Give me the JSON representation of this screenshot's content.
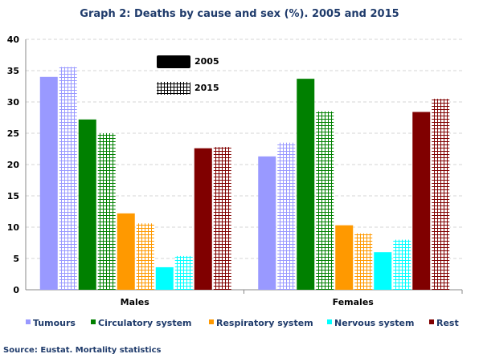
{
  "chart_data": {
    "type": "bar",
    "title": "Graph 2: Deaths by cause and sex (%). 2005 and 2015",
    "xlabel": "",
    "ylabel": "",
    "ylim": [
      0,
      40
    ],
    "yticks": [
      0,
      5,
      10,
      15,
      20,
      25,
      30,
      35,
      40
    ],
    "grid": true,
    "categories": [
      "Males",
      "Females"
    ],
    "years": [
      "2005",
      "2015"
    ],
    "series": [
      {
        "name": "Tumours",
        "color": "#9999ff",
        "values": {
          "2005": [
            34.0,
            21.3
          ],
          "2015": [
            35.6,
            23.5
          ]
        }
      },
      {
        "name": "Circulatory system",
        "color": "#008000",
        "values": {
          "2005": [
            27.2,
            33.7
          ],
          "2015": [
            25.0,
            28.5
          ]
        }
      },
      {
        "name": "Respiratory system",
        "color": "#ff9900",
        "values": {
          "2005": [
            12.2,
            10.3
          ],
          "2015": [
            10.6,
            9.0
          ]
        }
      },
      {
        "name": "Nervous system",
        "color": "#00ffff",
        "values": {
          "2005": [
            3.6,
            6.0
          ],
          "2015": [
            5.4,
            8.0
          ]
        }
      },
      {
        "name": "Rest",
        "color": "#800000",
        "values": {
          "2005": [
            22.6,
            28.4
          ],
          "2015": [
            22.8,
            30.5
          ]
        }
      }
    ],
    "year_legend": {
      "placement": "top-left inside plot",
      "solid_color": "#000000",
      "patterned": "2015"
    },
    "legend_placement": "bottom",
    "source": "Source: Eustat. Mortality statistics"
  }
}
